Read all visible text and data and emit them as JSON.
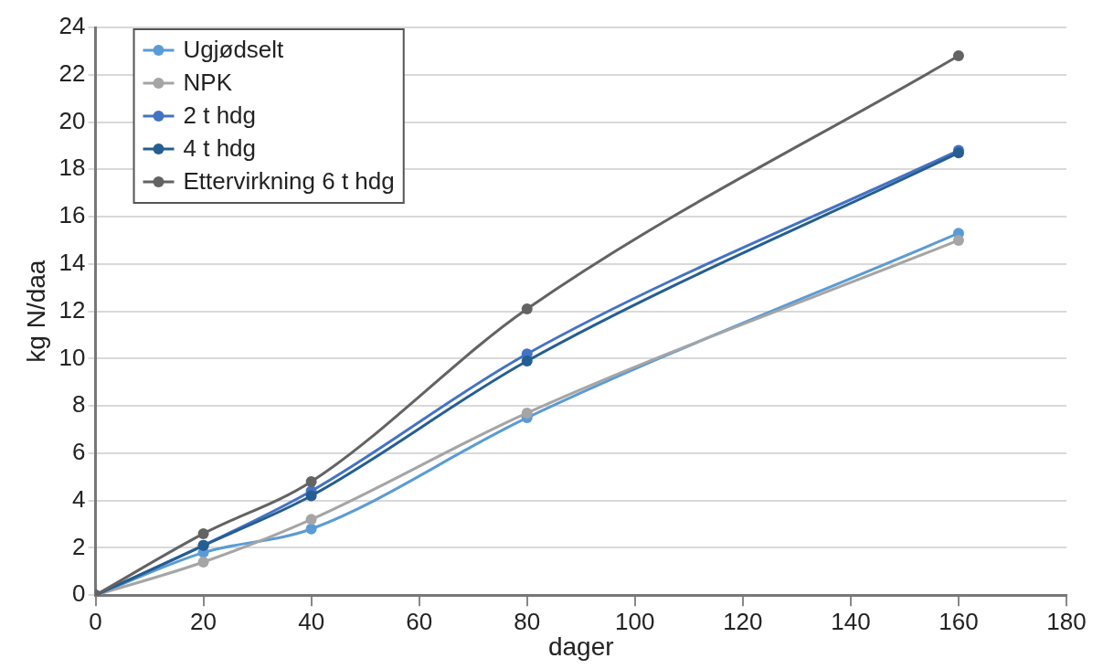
{
  "chart_data": {
    "type": "line",
    "xlabel": "dager",
    "ylabel": "kg N/daa",
    "x": [
      0,
      20,
      40,
      80,
      160
    ],
    "xlim": [
      0,
      180
    ],
    "xticks": [
      0,
      20,
      40,
      60,
      80,
      100,
      120,
      140,
      160,
      180
    ],
    "ylim": [
      0,
      24
    ],
    "yticks": [
      0,
      2,
      4,
      6,
      8,
      10,
      12,
      14,
      16,
      18,
      20,
      22,
      24
    ],
    "grid": "y",
    "legend": "top left",
    "marker": "circle",
    "line_style": "solid",
    "series": [
      {
        "name": "Ugjødselt",
        "color": "#5b9bd5",
        "values": [
          0,
          1.8,
          2.8,
          7.5,
          15.3
        ]
      },
      {
        "name": "NPK",
        "color": "#a5a5a5",
        "values": [
          0,
          1.4,
          3.2,
          7.7,
          15.0
        ]
      },
      {
        "name": "2 t hdg",
        "color": "#4472c4",
        "values": [
          0,
          2.1,
          4.4,
          10.2,
          18.8
        ]
      },
      {
        "name": "4 t hdg",
        "color": "#255e91",
        "values": [
          0,
          2.1,
          4.2,
          9.9,
          18.7
        ]
      },
      {
        "name": "Ettervirkning 6 t hdg",
        "color": "#636363",
        "values": [
          0,
          2.6,
          4.8,
          12.1,
          22.8
        ]
      }
    ]
  }
}
